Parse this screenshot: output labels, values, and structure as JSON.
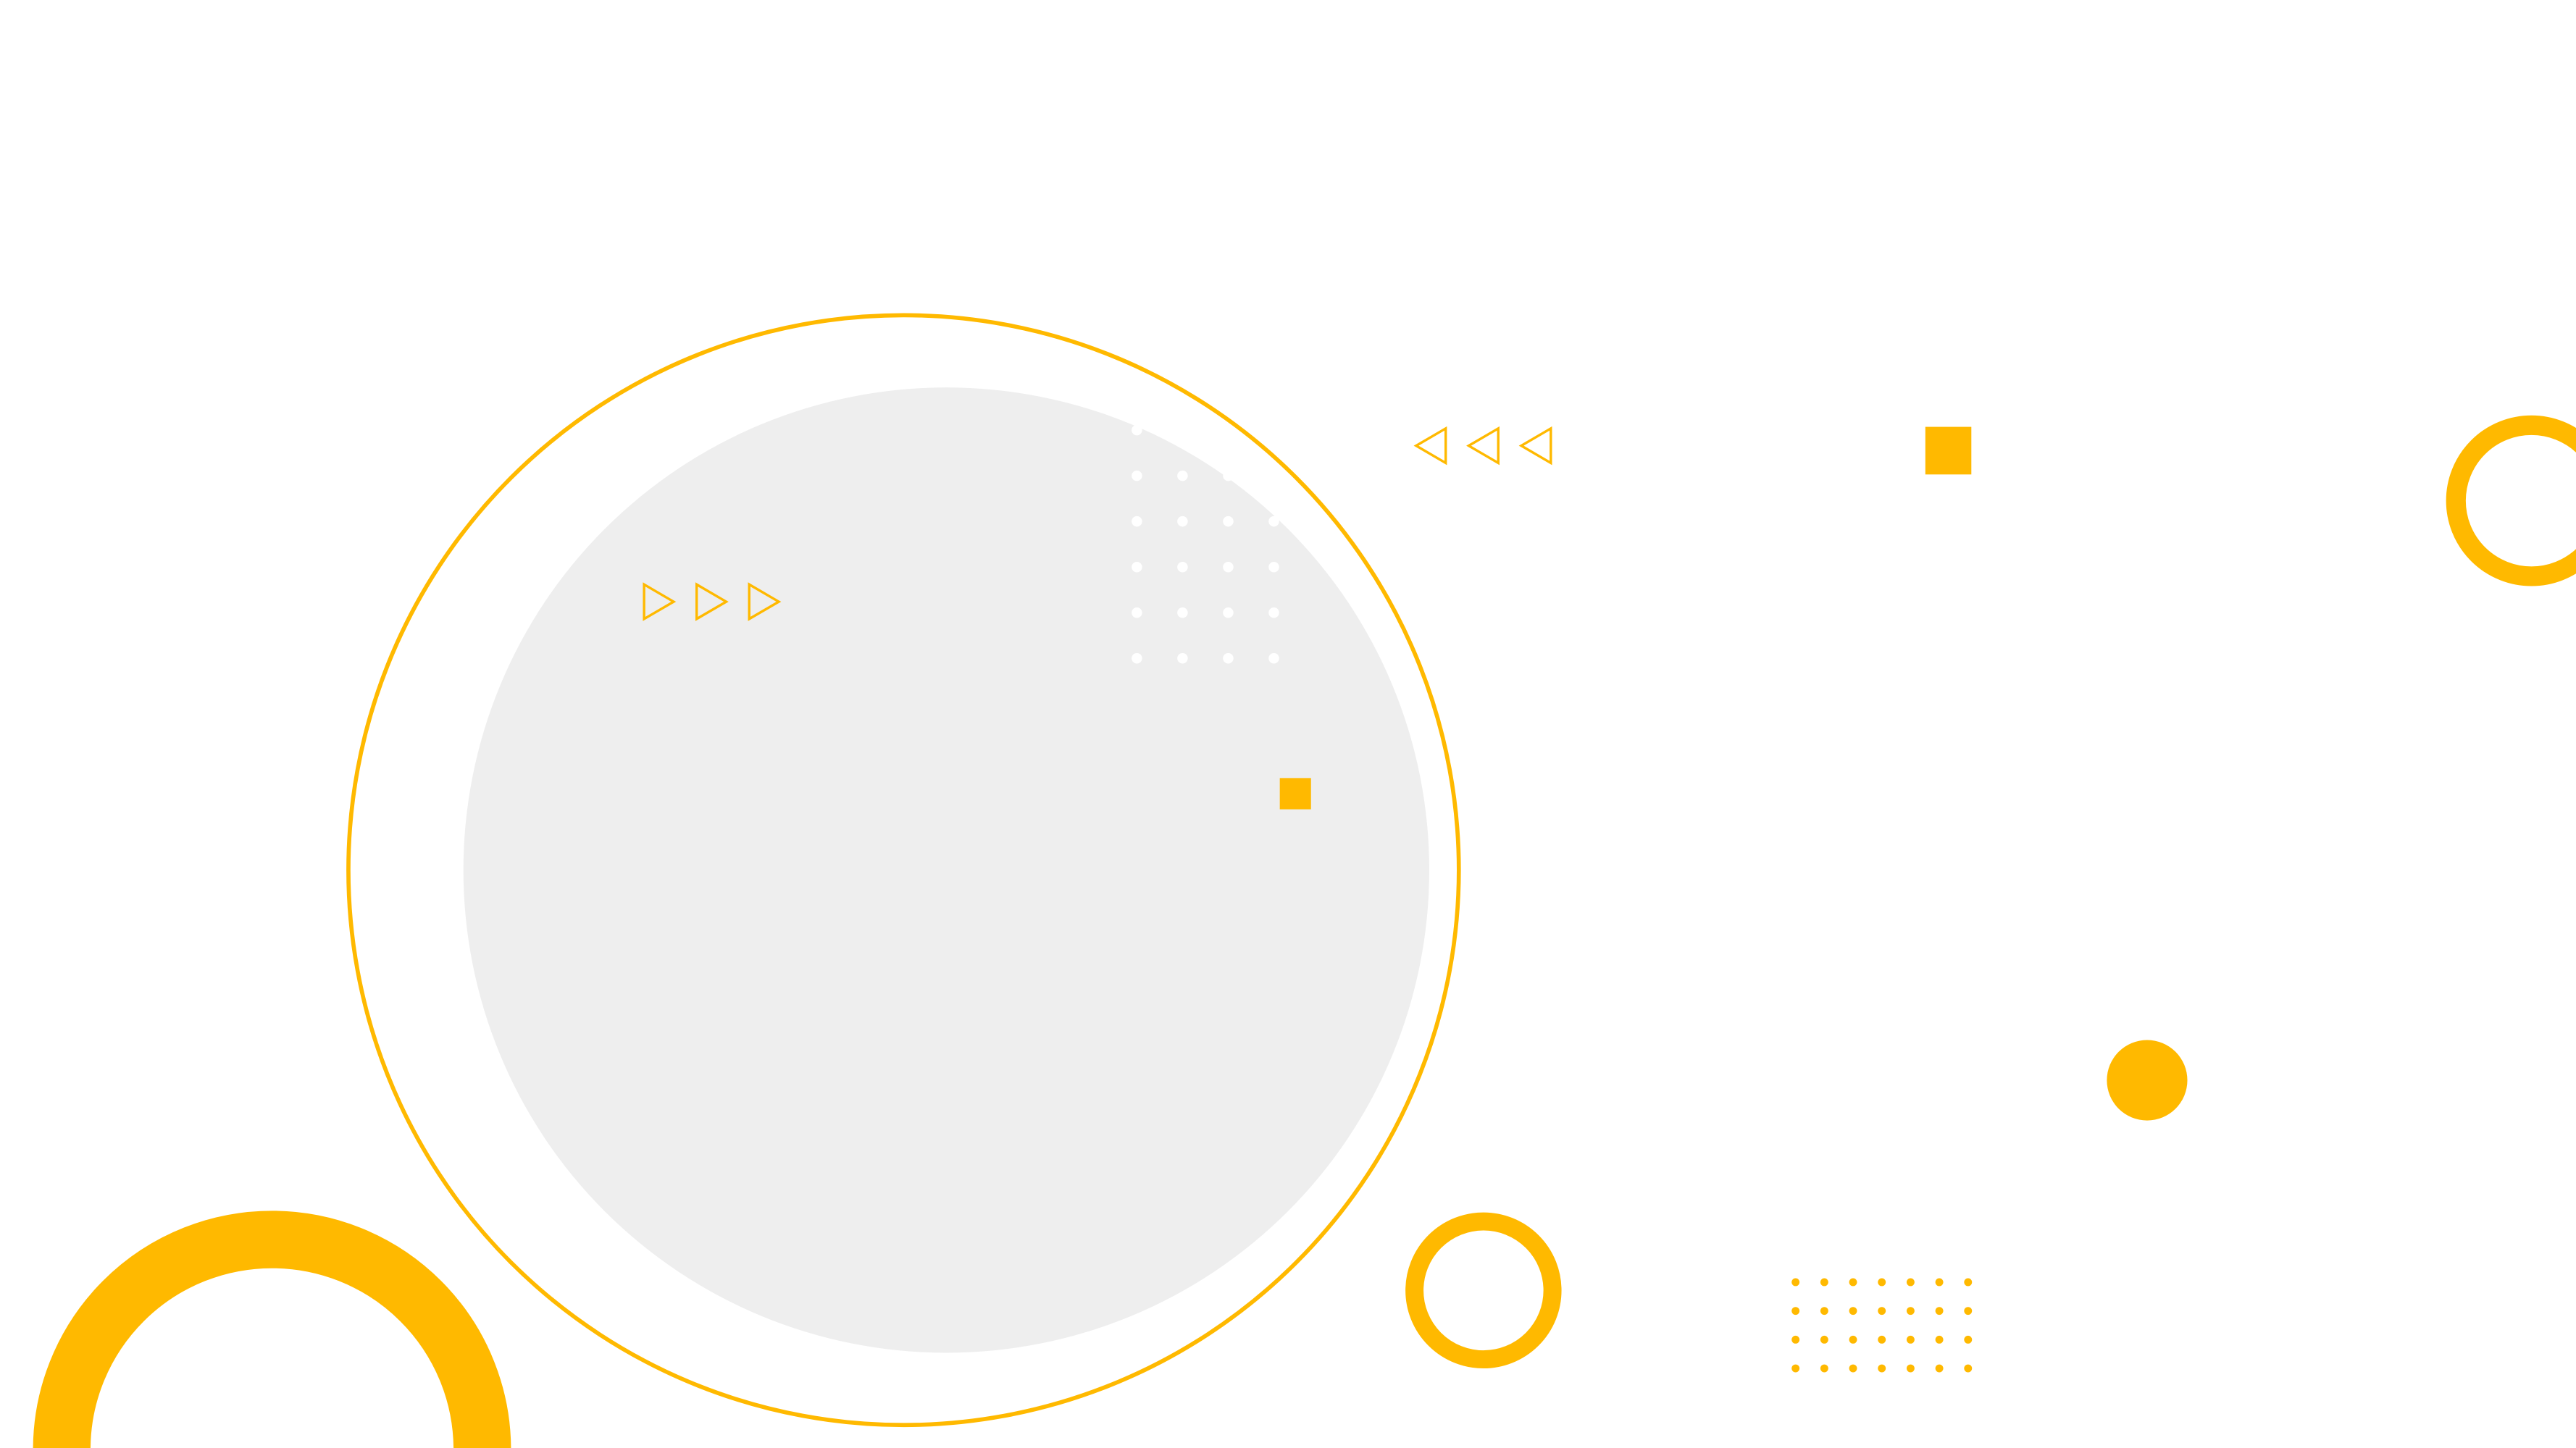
{
  "slide": {
    "background_color": "#FFFFFF",
    "accent_color": "#FFB900",
    "placeholder_color": "#EEEEEE",
    "dot_color_on_placeholder": "#FFFFFF"
  },
  "decorations": [
    "outline-circle",
    "image-placeholder-circle",
    "triangle-row-right",
    "triangle-row-left",
    "white-dot-grid",
    "yellow-dot-grid",
    "small-square",
    "medium-square",
    "filled-circle",
    "thick-half-ring",
    "ring-bottom",
    "ring-right-edge"
  ]
}
